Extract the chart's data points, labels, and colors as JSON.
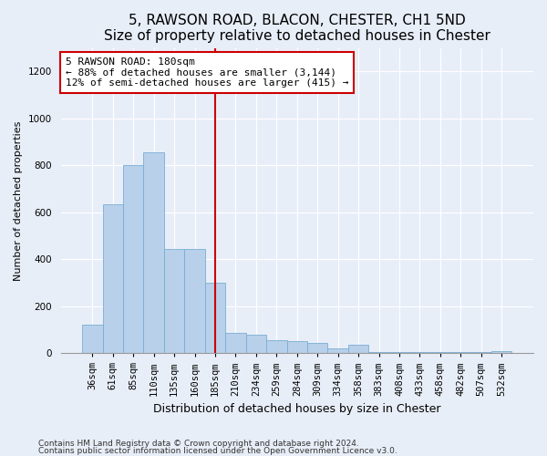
{
  "title1": "5, RAWSON ROAD, BLACON, CHESTER, CH1 5ND",
  "title2": "Size of property relative to detached houses in Chester",
  "xlabel": "Distribution of detached houses by size in Chester",
  "ylabel": "Number of detached properties",
  "categories": [
    "36sqm",
    "61sqm",
    "85sqm",
    "110sqm",
    "135sqm",
    "160sqm",
    "185sqm",
    "210sqm",
    "234sqm",
    "259sqm",
    "284sqm",
    "309sqm",
    "334sqm",
    "358sqm",
    "383sqm",
    "408sqm",
    "433sqm",
    "458sqm",
    "482sqm",
    "507sqm",
    "532sqm"
  ],
  "values": [
    120,
    635,
    800,
    855,
    445,
    445,
    300,
    85,
    80,
    55,
    50,
    45,
    20,
    35,
    5,
    5,
    5,
    5,
    5,
    5,
    10
  ],
  "bar_color": "#b8d0ea",
  "bar_edge_color": "#7aadd4",
  "highlight_bar_index": 6,
  "highlight_line_color": "#cc0000",
  "annotation_text": "5 RAWSON ROAD: 180sqm\n← 88% of detached houses are smaller (3,144)\n12% of semi-detached houses are larger (415) →",
  "annotation_box_facecolor": "#ffffff",
  "annotation_box_edgecolor": "#cc0000",
  "ylim": [
    0,
    1300
  ],
  "yticks": [
    0,
    200,
    400,
    600,
    800,
    1000,
    1200
  ],
  "footnote1": "Contains HM Land Registry data © Crown copyright and database right 2024.",
  "footnote2": "Contains public sector information licensed under the Open Government Licence v3.0.",
  "fig_facecolor": "#e8eef8",
  "axes_facecolor": "#e8eef8",
  "grid_color": "#ffffff",
  "title1_fontsize": 11,
  "title2_fontsize": 10,
  "ylabel_fontsize": 8,
  "xlabel_fontsize": 9,
  "tick_fontsize": 7.5,
  "footnote_fontsize": 6.5
}
